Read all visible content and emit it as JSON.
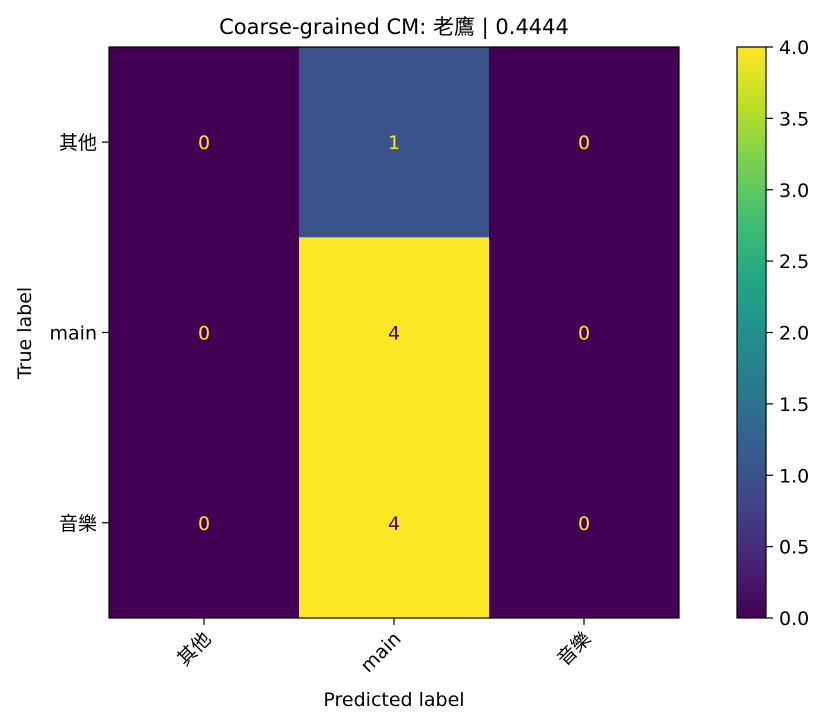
{
  "chart_data": {
    "type": "heatmap",
    "title": "Coarse-grained CM: 老鷹 | 0.4444",
    "xlabel": "Predicted label",
    "ylabel": "True label",
    "x_categories": [
      "其他",
      "main",
      "音樂"
    ],
    "y_categories": [
      "其他",
      "main",
      "音樂"
    ],
    "matrix": [
      [
        0,
        1,
        0
      ],
      [
        0,
        4,
        0
      ],
      [
        0,
        4,
        0
      ]
    ],
    "colorbar": {
      "colormap": "viridis",
      "range": [
        0.0,
        4.0
      ],
      "ticks": [
        "0.0",
        "0.5",
        "1.0",
        "1.5",
        "2.0",
        "2.5",
        "3.0",
        "3.5",
        "4.0"
      ]
    },
    "colors": {
      "low": "#440154",
      "high": "#fde725",
      "text_on_dark": "#fde725",
      "text_on_light": "#440154"
    }
  }
}
